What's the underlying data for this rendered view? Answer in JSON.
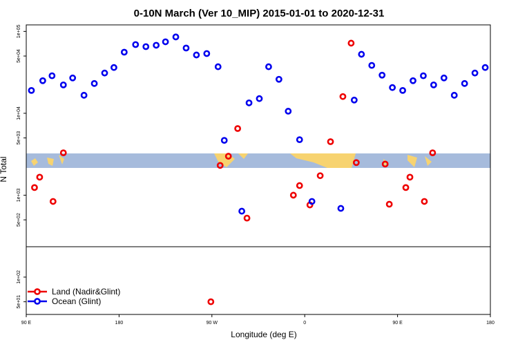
{
  "chart_data": {
    "type": "scatter",
    "title": "0-10N March (Ver 10_MIP)   2015-01-01 to 2020-12-31",
    "x_label": "Longitude (deg E)",
    "y_label": "N Total",
    "log_y": true,
    "legend": "bottom-left",
    "xlim": [
      90,
      540
    ],
    "ylim": [
      35,
      120000
    ],
    "xticks": [
      {
        "value": 90,
        "label": "90 E"
      },
      180,
      {
        "value": 270,
        "label": "90 W"
      },
      {
        "value": 360,
        "label": "0"
      },
      {
        "value": 450,
        "label": "90 E"
      },
      {
        "value": 540,
        "label": "180"
      }
    ],
    "yticks": [
      {
        "value": 100000,
        "label": "1e+05"
      },
      {
        "value": 50000,
        "label": "5e+04"
      },
      {
        "value": 10000,
        "label": "1e+04"
      },
      {
        "value": 5000,
        "label": "5e+03"
      },
      {
        "value": 1000,
        "label": "1e+03"
      },
      {
        "value": 500,
        "label": "5e+02"
      },
      {
        "value": 100,
        "label": "1e+02"
      },
      {
        "value": 50,
        "label": "5e+01"
      }
    ],
    "series": [
      {
        "name": "Land (Nadir&Glint)",
        "color": "#ee0000",
        "x": [
          98,
          103,
          116,
          126,
          269,
          278,
          286,
          295,
          304,
          349,
          355,
          365,
          375,
          385,
          397,
          405,
          410,
          438,
          442,
          458,
          462,
          476,
          484
        ],
        "values": [
          1240,
          1660,
          839,
          3290,
          50,
          2310,
          2990,
          6510,
          525,
          1000,
          1310,
          760,
          1730,
          4500,
          16000,
          71800,
          2500,
          2400,
          776,
          1240,
          1660,
          839,
          3290
        ]
      },
      {
        "name": "Ocean (Glint)",
        "color": "#0000ee",
        "x": [
          95,
          106,
          115,
          126,
          135,
          146,
          156,
          166,
          175,
          185,
          196,
          206,
          216,
          225,
          235,
          245,
          255,
          265,
          276,
          282,
          299,
          306,
          316,
          325,
          335,
          344,
          355,
          367,
          395,
          408,
          415,
          425,
          435,
          445,
          455,
          465,
          475,
          485,
          495,
          505,
          515,
          525,
          535
        ],
        "values": [
          19000,
          25000,
          28700,
          22200,
          27000,
          16600,
          23100,
          31000,
          36200,
          55700,
          69000,
          65100,
          67700,
          74600,
          85500,
          62600,
          51500,
          53600,
          37000,
          4670,
          638,
          13400,
          15100,
          37000,
          26000,
          10600,
          4760,
          839,
          690,
          14500,
          52500,
          38400,
          29200,
          20600,
          19000,
          25000,
          28700,
          22200,
          27000,
          16600,
          23100,
          31000,
          36200
        ]
      }
    ]
  }
}
